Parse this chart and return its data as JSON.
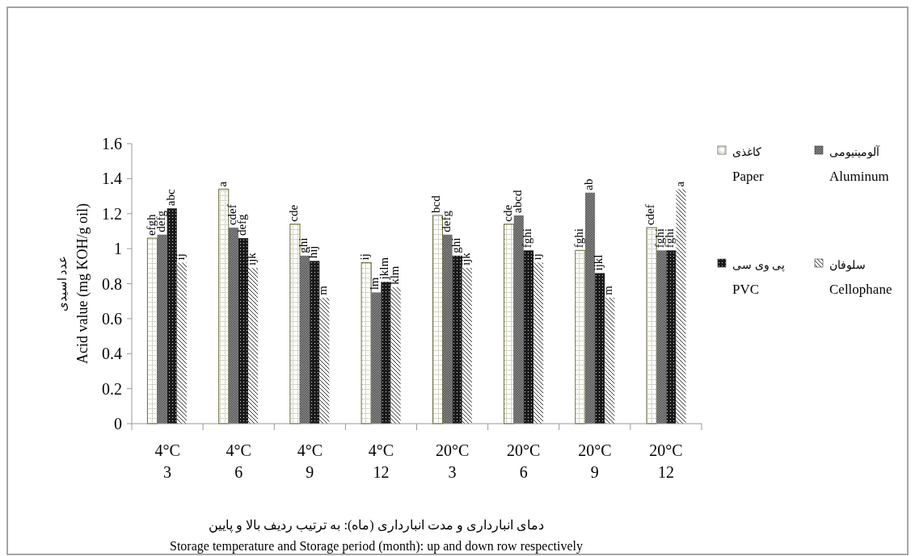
{
  "chart_data": {
    "type": "bar",
    "xlabel": "دمای انبارداری و مدت انبارداری (ماه): به ترتیب ردیف بالا و پایین\nStorage temperature  and Storage period (month):  up and down row respectively",
    "ylabel": "عدد اسیدی\nAcid value (mg KOH/g oil)",
    "categories": [
      "4°C\n3",
      "4°C\n6",
      "4°C\n9",
      "4°C\n12",
      "20°C\n3",
      "20°C\n6",
      "20°C\n9",
      "20°C\n12"
    ],
    "series": [
      {
        "name": "کاغذی\nPaper",
        "color": "#6b6b3a",
        "values": [
          1.06,
          1.34,
          1.14,
          0.92,
          1.19,
          1.14,
          0.99,
          1.12
        ],
        "value_labels": [
          "efgh",
          "a",
          "cde",
          "ij",
          "bcd",
          "cde",
          "fghi",
          "cdef"
        ]
      },
      {
        "name": "آلومینیومی\nAluminum",
        "color": "#8c8c8c",
        "values": [
          1.08,
          1.12,
          0.96,
          0.75,
          1.08,
          1.19,
          1.32,
          0.99
        ],
        "value_labels": [
          "defg",
          "cdef",
          "ghi",
          "lm",
          "defg",
          "abcd",
          "ab",
          "fghi"
        ]
      },
      {
        "name": "پی وی سی\nPVC",
        "color": "#1a1a1a",
        "values": [
          1.23,
          1.06,
          0.93,
          0.81,
          0.96,
          0.99,
          0.86,
          0.99
        ],
        "value_labels": [
          "abc",
          "defg",
          "hij",
          "jklm",
          "ghi",
          "fghi",
          "ijkl",
          "fghi"
        ]
      },
      {
        "name": "سلوفان\nCellophane",
        "color": "#b0b0b0",
        "values": [
          0.92,
          0.89,
          0.72,
          0.78,
          0.89,
          0.92,
          0.72,
          1.34
        ],
        "value_labels": [
          "ij",
          "ijk",
          "m",
          "klm",
          "ijk",
          "ij",
          "m",
          "a"
        ]
      }
    ],
    "ylim": [
      0,
      1.6
    ],
    "yticks": [
      0,
      0.2,
      0.4,
      0.6,
      0.8,
      1,
      1.2,
      1.4,
      1.6
    ],
    "grid": false,
    "legend": "right"
  }
}
